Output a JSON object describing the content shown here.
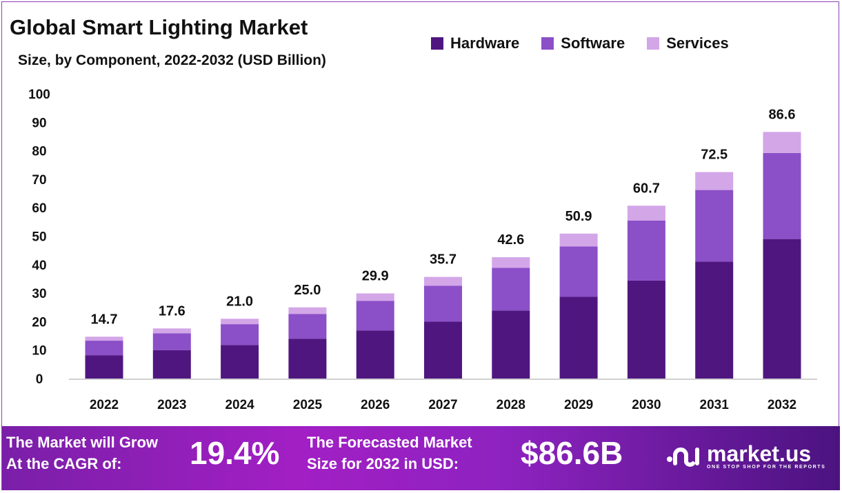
{
  "chart_data": {
    "type": "bar",
    "stacked": true,
    "title": "Global Smart Lighting Market",
    "subtitle": "Size, by Component, 2022-2032 (USD Billion)",
    "xlabel": "",
    "ylabel": "",
    "ylim": [
      0,
      100
    ],
    "yticks": [
      0,
      10,
      20,
      30,
      40,
      50,
      60,
      70,
      80,
      90,
      100
    ],
    "grid": false,
    "legend_position": "top-right",
    "categories": [
      "2022",
      "2023",
      "2024",
      "2025",
      "2026",
      "2027",
      "2028",
      "2029",
      "2030",
      "2031",
      "2032"
    ],
    "series": [
      {
        "name": "Hardware",
        "color": "#4f1680",
        "values": [
          8.2,
          10.0,
          11.8,
          14.0,
          16.9,
          20.0,
          23.9,
          28.7,
          34.4,
          41.1,
          49.0
        ]
      },
      {
        "name": "Software",
        "color": "#8b4fc8",
        "values": [
          5.1,
          5.9,
          7.3,
          8.7,
          10.4,
          12.6,
          15.0,
          17.7,
          21.1,
          25.1,
          30.2
        ]
      },
      {
        "name": "Services",
        "color": "#d3a6e8",
        "values": [
          1.4,
          1.7,
          1.9,
          2.3,
          2.6,
          3.1,
          3.7,
          4.5,
          5.2,
          6.3,
          7.4
        ]
      }
    ],
    "totals": [
      "14.7",
      "17.6",
      "21.0",
      "25.0",
      "29.9",
      "35.7",
      "42.6",
      "50.9",
      "60.7",
      "72.5",
      "86.6"
    ]
  },
  "footer": {
    "cagr_label_1": "The Market will Grow",
    "cagr_label_2": "At the CAGR of:",
    "cagr_value": "19.4%",
    "forecast_label_1": "The Forecasted Market",
    "forecast_label_2": "Size for 2032 in USD:",
    "forecast_value": "$86.6B",
    "logo_name": "market.us",
    "logo_tagline": "ONE STOP SHOP FOR THE REPORTS"
  }
}
